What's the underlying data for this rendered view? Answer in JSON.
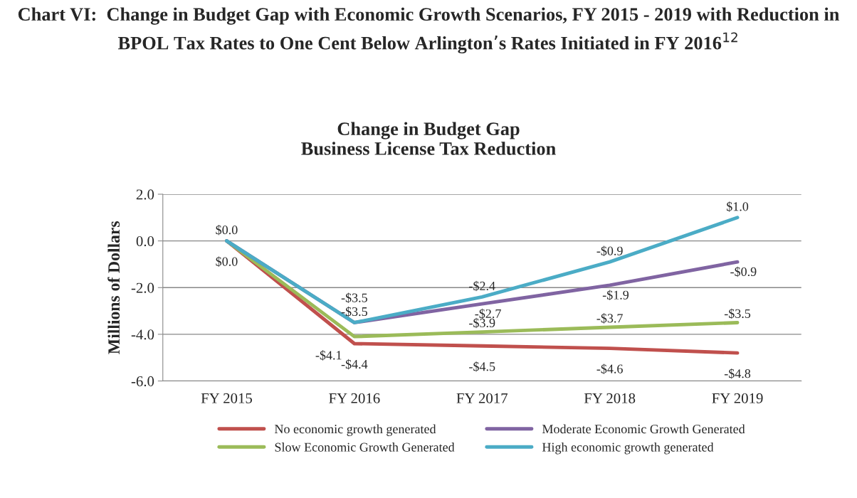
{
  "chart_data": {
    "type": "line",
    "title": "Chart VI:  Change in Budget Gap with Economic Growth Scenarios, FY 2015 - 2019 with Reduction in BPOL Tax Rates to One Cent Below Arlington’s Rates Initiated in FY 2016$^{12}$",
    "subtitle": "Change in Budget Gap\nBusiness License Tax Reduction",
    "ylabel": "Millions of Dollars",
    "categories": [
      "FY 2015",
      "FY 2016",
      "FY 2017",
      "FY 2018",
      "FY 2019"
    ],
    "series": [
      {
        "name": "No economic growth generated",
        "color": "#c0504d",
        "values": [
          0.0,
          -4.4,
          -4.5,
          -4.6,
          -4.8
        ],
        "value_labels": [
          "$0.0",
          "-$4.4",
          "-$4.5",
          "-$4.6",
          "-$4.8"
        ]
      },
      {
        "name": "Slow Economic Growth Generated",
        "color": "#9bbb59",
        "values": [
          0.0,
          -4.1,
          -3.9,
          -3.7,
          -3.5
        ],
        "value_labels": [
          null,
          "-$4.1",
          "-$3.9",
          "-$3.7",
          "-$3.5"
        ]
      },
      {
        "name": "Moderate Economic Growth Generated",
        "color": "#8064a2",
        "values": [
          0.0,
          -3.5,
          -2.7,
          -1.9,
          -0.9
        ],
        "value_labels": [
          null,
          "-$3.5",
          "-$2.7",
          "-$1.9",
          "-$0.9"
        ]
      },
      {
        "name": "High economic growth generated",
        "color": "#4bacc6",
        "values": [
          0.0,
          -3.5,
          -2.4,
          -0.9,
          1.0
        ],
        "value_labels": [
          "$0.0",
          "-$3.5",
          "-$2.4",
          "-$0.9",
          "$1.0"
        ]
      }
    ],
    "ylim": [
      -6.0,
      2.0
    ],
    "yticks": [
      {
        "value": -6,
        "label": "-6.0"
      },
      {
        "value": -4,
        "label": "-4.0"
      },
      {
        "value": -2,
        "label": "-2.0"
      },
      {
        "value": 0,
        "label": "0.0"
      },
      {
        "value": 2,
        "label": "2.0"
      }
    ],
    "grid": "y",
    "legend": "bottom",
    "marker": "none",
    "line_style": "solid"
  }
}
